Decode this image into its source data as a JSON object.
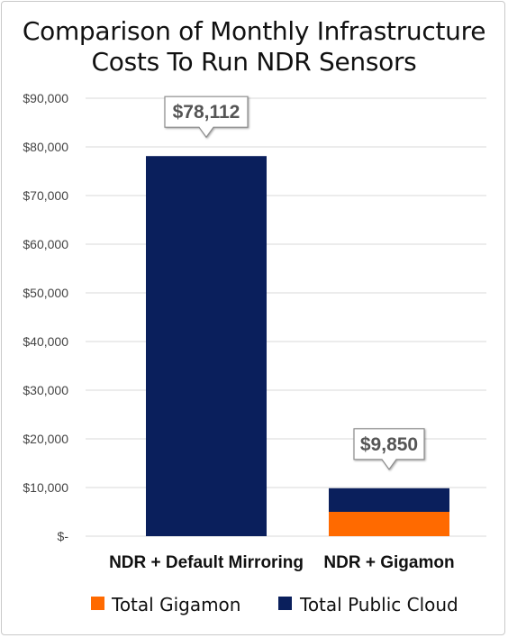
{
  "chart_data": {
    "type": "bar",
    "stacked": true,
    "title_lines": [
      "Comparison of Monthly Infrastructure",
      "Costs To Run NDR Sensors"
    ],
    "categories": [
      "NDR + Default Mirroring",
      "NDR + Gigamon"
    ],
    "series": [
      {
        "name": "Total Gigamon",
        "values": [
          0,
          5000
        ],
        "color": "#ff6a00"
      },
      {
        "name": "Total Public Cloud",
        "values": [
          78112,
          4850
        ],
        "color": "#0a1f5c"
      }
    ],
    "totals": [
      78112,
      9850
    ],
    "total_labels": [
      "$78,112",
      "$9,850"
    ],
    "ylim": [
      0,
      90000
    ],
    "y_ticks": [
      0,
      10000,
      20000,
      30000,
      40000,
      50000,
      60000,
      70000,
      80000,
      90000
    ],
    "y_tick_labels": [
      "$-",
      "$10,000",
      "$20,000",
      "$30,000",
      "$40,000",
      "$50,000",
      "$60,000",
      "$70,000",
      "$80,000",
      "$90,000"
    ],
    "grid": true,
    "legend_position": "bottom"
  }
}
